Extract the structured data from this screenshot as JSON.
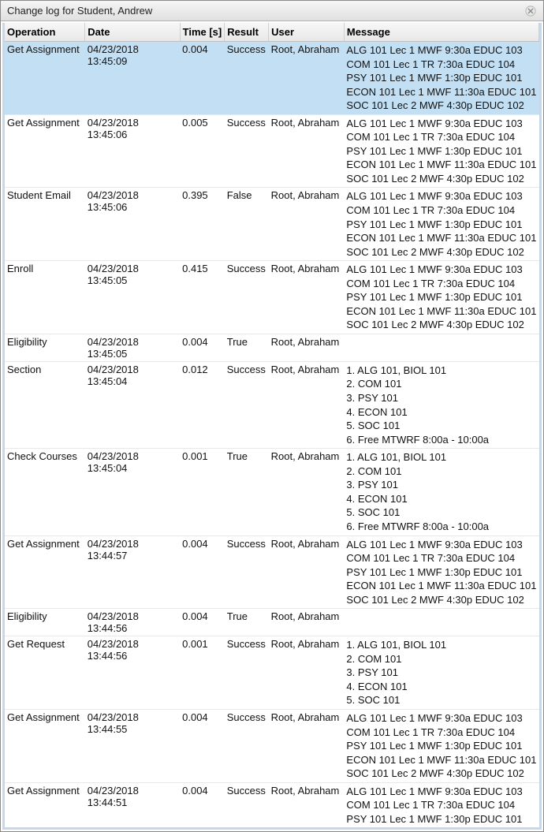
{
  "window": {
    "title": "Change log for Student, Andrew"
  },
  "columns": {
    "operation": "Operation",
    "date": "Date",
    "time": "Time [s]",
    "result": "Result",
    "user": "User",
    "message": "Message"
  },
  "colors": {
    "selected_row_bg": "#c3dff3",
    "header_border": "#d0d0d0",
    "row_border": "#e8e8e8",
    "titlebar_top": "#f5f5f5",
    "titlebar_bottom": "#e0e0e0"
  },
  "rows": [
    {
      "selected": true,
      "operation": "Get Assignment",
      "date": "04/23/2018 13:45:09",
      "time": "0.004",
      "result": "Success",
      "user": "Root, Abraham",
      "message": [
        "ALG 101 Lec 1 MWF 9:30a EDUC 103",
        "COM 101 Lec 1 TR 7:30a EDUC 104",
        "PSY 101 Lec 1 MWF 1:30p EDUC 101",
        "ECON 101 Lec 1 MWF 11:30a EDUC 101",
        "SOC 101 Lec 2 MWF 4:30p EDUC 102"
      ]
    },
    {
      "operation": "Get Assignment",
      "date": "04/23/2018 13:45:06",
      "time": "0.005",
      "result": "Success",
      "user": "Root, Abraham",
      "message": [
        "ALG 101 Lec 1 MWF 9:30a EDUC 103",
        "COM 101 Lec 1 TR 7:30a EDUC 104",
        "PSY 101 Lec 1 MWF 1:30p EDUC 101",
        "ECON 101 Lec 1 MWF 11:30a EDUC 101",
        "SOC 101 Lec 2 MWF 4:30p EDUC 102"
      ]
    },
    {
      "operation": "Student Email",
      "date": "04/23/2018 13:45:06",
      "time": "0.395",
      "result": "False",
      "user": "Root, Abraham",
      "message": [
        "ALG 101 Lec 1 MWF 9:30a EDUC 103",
        "COM 101 Lec 1 TR 7:30a EDUC 104",
        "PSY 101 Lec 1 MWF 1:30p EDUC 101",
        "ECON 101 Lec 1 MWF 11:30a EDUC 101",
        "SOC 101 Lec 2 MWF 4:30p EDUC 102"
      ]
    },
    {
      "operation": "Enroll",
      "date": "04/23/2018 13:45:05",
      "time": "0.415",
      "result": "Success",
      "user": "Root, Abraham",
      "message": [
        "ALG 101 Lec 1 MWF 9:30a EDUC 103",
        "COM 101 Lec 1 TR 7:30a EDUC 104",
        "PSY 101 Lec 1 MWF 1:30p EDUC 101",
        "ECON 101 Lec 1 MWF 11:30a EDUC 101",
        "SOC 101 Lec 2 MWF 4:30p EDUC 102"
      ]
    },
    {
      "operation": "Eligibility",
      "date": "04/23/2018 13:45:05",
      "time": "0.004",
      "result": "True",
      "user": "Root, Abraham",
      "message": []
    },
    {
      "operation": "Section",
      "date": "04/23/2018 13:45:04",
      "time": "0.012",
      "result": "Success",
      "user": "Root, Abraham",
      "message": [
        "1. ALG 101, BIOL 101",
        "2. COM 101",
        "3. PSY 101",
        "4. ECON 101",
        "5. SOC 101",
        "6. Free MTWRF 8:00a - 10:00a"
      ]
    },
    {
      "operation": "Check Courses",
      "date": "04/23/2018 13:45:04",
      "time": "0.001",
      "result": "True",
      "user": "Root, Abraham",
      "message": [
        "1. ALG 101, BIOL 101",
        "2. COM 101",
        "3. PSY 101",
        "4. ECON 101",
        "5. SOC 101",
        "6. Free MTWRF 8:00a - 10:00a"
      ]
    },
    {
      "operation": "Get Assignment",
      "date": "04/23/2018 13:44:57",
      "time": "0.004",
      "result": "Success",
      "user": "Root, Abraham",
      "message": [
        "ALG 101 Lec 1 MWF 9:30a EDUC 103",
        "COM 101 Lec 1 TR 7:30a EDUC 104",
        "PSY 101 Lec 1 MWF 1:30p EDUC 101",
        "ECON 101 Lec 1 MWF 11:30a EDUC 101",
        "SOC 101 Lec 2 MWF 4:30p EDUC 102"
      ]
    },
    {
      "operation": "Eligibility",
      "date": "04/23/2018 13:44:56",
      "time": "0.004",
      "result": "True",
      "user": "Root, Abraham",
      "message": []
    },
    {
      "operation": "Get Request",
      "date": "04/23/2018 13:44:56",
      "time": "0.001",
      "result": "Success",
      "user": "Root, Abraham",
      "message": [
        "1. ALG 101, BIOL 101",
        "2. COM 101",
        "3. PSY 101",
        "4. ECON 101",
        "5. SOC 101"
      ]
    },
    {
      "operation": "Get Assignment",
      "date": "04/23/2018 13:44:55",
      "time": "0.004",
      "result": "Success",
      "user": "Root, Abraham",
      "message": [
        "ALG 101 Lec 1 MWF 9:30a EDUC 103",
        "COM 101 Lec 1 TR 7:30a EDUC 104",
        "PSY 101 Lec 1 MWF 1:30p EDUC 101",
        "ECON 101 Lec 1 MWF 11:30a EDUC 101",
        "SOC 101 Lec 2 MWF 4:30p EDUC 102"
      ]
    },
    {
      "operation": "Get Assignment",
      "date": "04/23/2018 13:44:51",
      "time": "0.004",
      "result": "Success",
      "user": "Root, Abraham",
      "message": [
        "ALG 101 Lec 1 MWF 9:30a EDUC 103",
        "COM 101 Lec 1 TR 7:30a EDUC 104",
        "PSY 101 Lec 1 MWF 1:30p EDUC 101"
      ]
    }
  ]
}
